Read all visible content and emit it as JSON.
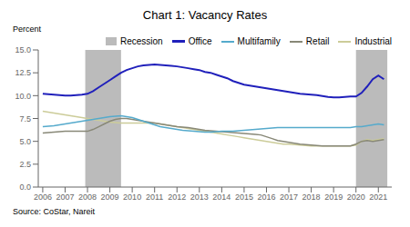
{
  "chart_data": {
    "type": "line",
    "title": "Chart 1: Vacancy Rates",
    "ylabel": "Percent",
    "annotations": [
      "Source: CoStar, Nareit"
    ],
    "x": [
      2006,
      2006.25,
      2006.5,
      2006.75,
      2007,
      2007.25,
      2007.5,
      2007.75,
      2008,
      2008.25,
      2008.5,
      2008.75,
      2009,
      2009.25,
      2009.5,
      2009.75,
      2010,
      2010.25,
      2010.5,
      2010.75,
      2011,
      2011.25,
      2011.5,
      2011.75,
      2012,
      2012.25,
      2012.5,
      2012.75,
      2013,
      2013.25,
      2013.5,
      2013.75,
      2014,
      2014.25,
      2014.5,
      2014.75,
      2015,
      2015.25,
      2015.5,
      2015.75,
      2016,
      2016.25,
      2016.5,
      2016.75,
      2017,
      2017.25,
      2017.5,
      2017.75,
      2018,
      2018.25,
      2018.5,
      2018.75,
      2019,
      2019.25,
      2019.5,
      2019.75,
      2020,
      2020.25,
      2020.5,
      2020.75,
      2021,
      2021.25
    ],
    "series": [
      {
        "name": "Office",
        "color": "#2020bb",
        "values": [
          10.2,
          10.15,
          10.1,
          10.05,
          10.0,
          10.0,
          10.05,
          10.1,
          10.2,
          10.5,
          10.9,
          11.3,
          11.7,
          12.1,
          12.5,
          12.8,
          13.0,
          13.2,
          13.3,
          13.35,
          13.4,
          13.35,
          13.3,
          13.25,
          13.2,
          13.1,
          13.0,
          12.9,
          12.8,
          12.6,
          12.5,
          12.3,
          12.1,
          11.9,
          11.6,
          11.4,
          11.2,
          11.1,
          11.0,
          10.9,
          10.8,
          10.7,
          10.6,
          10.5,
          10.4,
          10.3,
          10.2,
          10.15,
          10.1,
          10.05,
          9.95,
          9.85,
          9.8,
          9.8,
          9.85,
          9.9,
          9.9,
          10.3,
          11.0,
          11.8,
          12.2,
          11.8
        ]
      },
      {
        "name": "Multifamily",
        "color": "#55aacc",
        "values": [
          6.6,
          6.65,
          6.7,
          6.8,
          6.9,
          7.0,
          7.1,
          7.2,
          7.3,
          7.4,
          7.5,
          7.6,
          7.7,
          7.75,
          7.8,
          7.7,
          7.6,
          7.4,
          7.2,
          7.0,
          6.8,
          6.6,
          6.5,
          6.4,
          6.3,
          6.2,
          6.15,
          6.1,
          6.05,
          6.0,
          6.0,
          6.05,
          6.1,
          6.1,
          6.1,
          6.15,
          6.2,
          6.25,
          6.3,
          6.35,
          6.4,
          6.45,
          6.5,
          6.5,
          6.5,
          6.5,
          6.5,
          6.5,
          6.5,
          6.5,
          6.5,
          6.5,
          6.5,
          6.5,
          6.5,
          6.5,
          6.6,
          6.6,
          6.7,
          6.8,
          6.9,
          6.8
        ]
      },
      {
        "name": "Retail",
        "color": "#888877",
        "values": [
          5.9,
          5.95,
          6.0,
          6.05,
          6.1,
          6.1,
          6.1,
          6.1,
          6.1,
          6.3,
          6.6,
          6.9,
          7.2,
          7.4,
          7.5,
          7.5,
          7.4,
          7.3,
          7.2,
          7.1,
          7.0,
          6.9,
          6.8,
          6.7,
          6.6,
          6.55,
          6.5,
          6.4,
          6.3,
          6.2,
          6.15,
          6.1,
          6.05,
          6.0,
          5.95,
          5.9,
          5.85,
          5.8,
          5.75,
          5.7,
          5.5,
          5.3,
          5.1,
          5.0,
          4.9,
          4.8,
          4.7,
          4.65,
          4.6,
          4.55,
          4.5,
          4.5,
          4.5,
          4.5,
          4.5,
          4.5,
          4.7,
          5.0,
          5.1,
          5.0,
          5.1,
          5.2
        ]
      },
      {
        "name": "Industrial",
        "color": "#cccc99",
        "values": [
          8.3,
          8.2,
          8.1,
          8.0,
          7.9,
          7.8,
          7.7,
          7.6,
          7.5,
          7.4,
          7.3,
          7.2,
          7.1,
          7.05,
          7.0,
          7.0,
          7.0,
          7.0,
          7.0,
          7.0,
          7.0,
          6.9,
          6.8,
          6.7,
          6.6,
          6.5,
          6.4,
          6.3,
          6.2,
          6.1,
          6.0,
          5.9,
          5.8,
          5.7,
          5.6,
          5.5,
          5.4,
          5.3,
          5.2,
          5.1,
          5.0,
          4.9,
          4.8,
          4.7,
          4.7,
          4.65,
          4.6,
          4.55,
          4.5,
          4.5,
          4.5,
          4.5,
          4.5,
          4.5,
          4.5,
          4.5,
          4.6,
          5.0,
          5.2,
          5.1,
          5.2,
          5.3
        ]
      }
    ],
    "bands": {
      "name": "Recession",
      "color": "#bbbbbb",
      "ranges": [
        [
          2007.9,
          2009.5
        ],
        [
          2020.0,
          2021.4
        ]
      ]
    },
    "xlim": [
      2005.8,
      2021.6
    ],
    "xticks": [
      2006,
      2007,
      2008,
      2009,
      2010,
      2011,
      2012,
      2013,
      2014,
      2015,
      2016,
      2017,
      2018,
      2019,
      2020,
      2021
    ],
    "ylim": [
      0.0,
      15.0
    ],
    "yticks": [
      {
        "value": 0.0,
        "label": "0.0"
      },
      2.5,
      {
        "value": 5.0,
        "label": "5.0"
      },
      7.5,
      {
        "value": 10.0,
        "label": "10.0"
      },
      12.5,
      {
        "value": 15.0,
        "label": "15.0"
      }
    ],
    "grid": false,
    "legend": "upper right"
  }
}
